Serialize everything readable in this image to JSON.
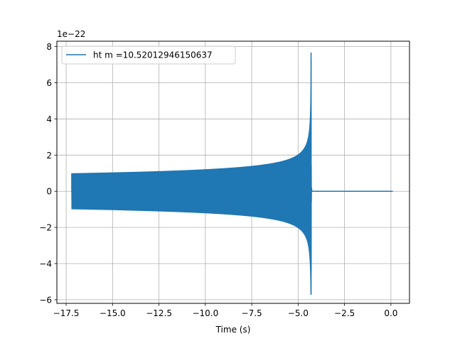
{
  "chart_data": {
    "type": "line",
    "title": "",
    "xlabel": "Time (s)",
    "ylabel": "",
    "y_offset_label": "1e−22",
    "xlim": [
      -18.0,
      1.0
    ],
    "ylim": [
      -6.2,
      8.3
    ],
    "x_ticks": [
      -17.5,
      -15.0,
      -12.5,
      -10.0,
      -7.5,
      -5.0,
      -2.5,
      0.0
    ],
    "x_tick_labels": [
      "−17.5",
      "−15.0",
      "−12.5",
      "−10.0",
      "−7.5",
      "−5.0",
      "−2.5",
      "0.0"
    ],
    "y_ticks": [
      -6,
      -4,
      -2,
      0,
      2,
      4,
      6,
      8
    ],
    "y_tick_labels": [
      "−6",
      "−4",
      "−2",
      "0",
      "2",
      "4",
      "6",
      "8"
    ],
    "grid": true,
    "legend_position": "top-left",
    "series": [
      {
        "name": "ht m =10.52012946150637",
        "color": "#1f77b4",
        "start_time": -17.2,
        "merger_time": -4.3,
        "end_time": 0.1,
        "initial_amplitude": 0.97,
        "peak_upper": 7.65,
        "peak_lower": -5.7
      }
    ]
  }
}
